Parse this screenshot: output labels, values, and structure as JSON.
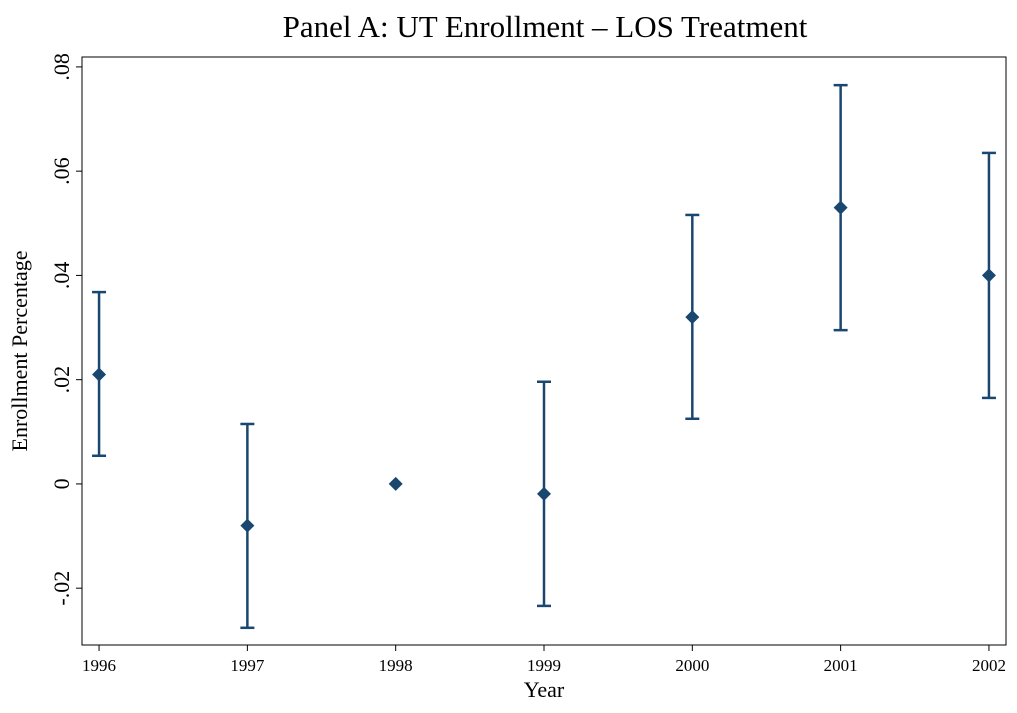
{
  "chart_data": {
    "type": "errorbar",
    "title": "Panel A: UT Enrollment – LOS Treatment",
    "x_label": "Year",
    "y_label": "Enrollment Percentage",
    "x": [
      1996,
      1997,
      1998,
      1999,
      2000,
      2001,
      2002
    ],
    "values": [
      0.021,
      -0.008,
      0,
      -0.0019,
      0.032,
      0.053,
      0.04
    ],
    "lower": [
      0.0054,
      -0.0276,
      null,
      -0.0234,
      0.0125,
      0.0295,
      0.0165
    ],
    "upper": [
      0.0368,
      0.0115,
      null,
      0.0196,
      0.0516,
      0.0765,
      0.0635
    ],
    "color": "#1a476f",
    "xlim": [
      1995.885,
      2002.115
    ],
    "xticks": [
      1996,
      1997,
      1998,
      1999,
      2000,
      2001,
      2002
    ],
    "ylim": [
      -0.0309,
      0.0819
    ],
    "yticks": [
      {
        "value": -0.02,
        "label": "-.02"
      },
      0,
      {
        "value": 0.02,
        "label": ".02"
      },
      {
        "value": 0.04,
        "label": ".04"
      },
      {
        "value": 0.06,
        "label": ".06"
      },
      {
        "value": 0.08,
        "label": ".08"
      }
    ]
  }
}
